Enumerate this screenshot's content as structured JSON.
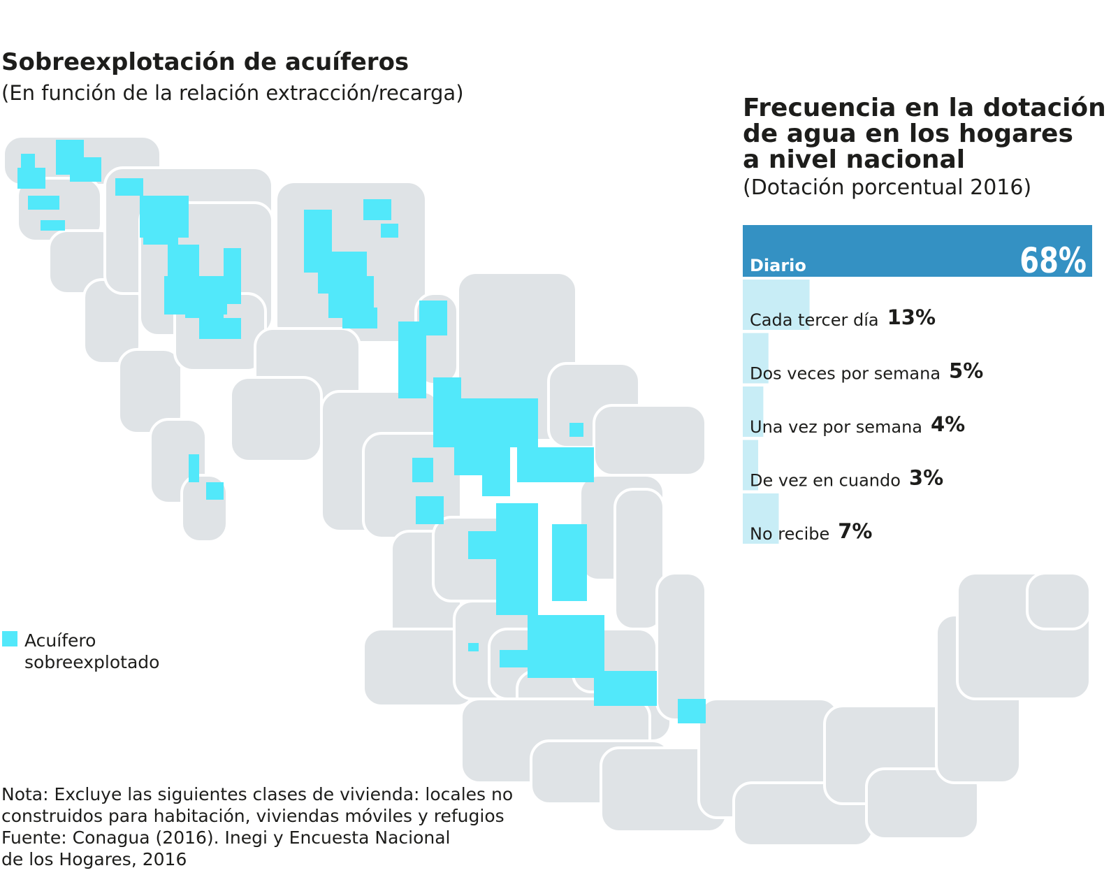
{
  "map": {
    "title": "Sobreexplotación de acuíferos",
    "subtitle": "(En función de la relación extracción/recarga)",
    "legend_lines": [
      "Acuífero",
      "sobreexplotado"
    ]
  },
  "chart_data": {
    "type": "bar",
    "orientation": "horizontal",
    "title_lines": [
      "Frecuencia en la dotación",
      "de agua en los hogares",
      "a nivel nacional"
    ],
    "subtitle": "(Dotación porcentual 2016)",
    "categories": [
      "Diario",
      "Cada tercer día",
      "Dos veces por semana",
      "Una vez por semana",
      "De vez en cuando",
      "No recibe"
    ],
    "values": [
      68,
      13,
      5,
      4,
      3,
      7
    ],
    "value_labels": [
      "68%",
      "13%",
      "5%",
      "4%",
      "3%",
      "7%"
    ],
    "colors": [
      "#3491c3",
      "#c8edf6",
      "#c8edf6",
      "#c8edf6",
      "#c8edf6",
      "#c8edf6"
    ]
  },
  "note_lines": [
    "Nota: Excluye las siguientes clases de vivienda: locales no",
    "construidos para habitación, viviendas móviles y refugios",
    "Fuente: Conagua (2016). Inegi y Encuesta Nacional",
    "de los Hogares, 2016"
  ]
}
